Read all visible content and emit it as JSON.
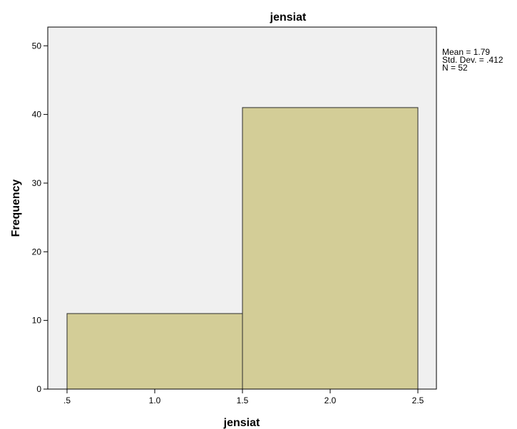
{
  "chart_data": {
    "type": "bar",
    "title": "jensiat",
    "xlabel": "jensiat",
    "ylabel": "Frequency",
    "bins": [
      {
        "from": 0.5,
        "to": 1.5,
        "value": 11
      },
      {
        "from": 1.5,
        "to": 2.5,
        "value": 41
      }
    ],
    "xlim": [
      0.5,
      2.5
    ],
    "ylim": [
      0,
      52.5
    ],
    "xticks": [
      {
        "value": 0.5,
        "label": ".5"
      },
      {
        "value": 1.0,
        "label": "1.0"
      },
      {
        "value": 1.5,
        "label": "1.5"
      },
      {
        "value": 2.0,
        "label": "2.0"
      },
      {
        "value": 2.5,
        "label": "2.5"
      }
    ],
    "yticks": [
      {
        "value": 0,
        "label": "0"
      },
      {
        "value": 10,
        "label": "10"
      },
      {
        "value": 20,
        "label": "20"
      },
      {
        "value": 30,
        "label": "30"
      },
      {
        "value": 40,
        "label": "40"
      },
      {
        "value": 50,
        "label": "50"
      }
    ],
    "stats": [
      "Mean = 1.79",
      "Std. Dev. = .412",
      "N = 52"
    ],
    "grid": false,
    "colors": {
      "bar_fill": "#d3cd97",
      "bar_stroke": "#2b2b2b",
      "plot_background": "#f0f0f0",
      "axis": "#000000"
    }
  }
}
